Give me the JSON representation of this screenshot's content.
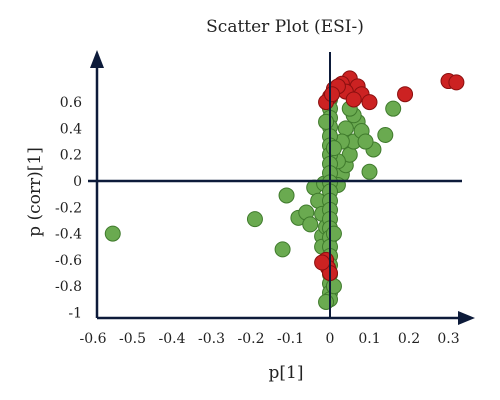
{
  "chart_data": {
    "type": "scatter",
    "title": "Scatter Plot (ESI-)",
    "xlabel": "p[1]",
    "ylabel": "p (corr)[1]",
    "xlim": [
      -0.6,
      0.35
    ],
    "ylim": [
      -1,
      0.8
    ],
    "x_ticks": [
      "-0.6",
      "-0.5",
      "-0.4",
      "-0.3",
      "-0.2",
      "-0.1",
      "0",
      "0.1",
      "0.2",
      "0.3"
    ],
    "y_ticks": [
      "0.6",
      "0.4",
      "0.2",
      "0",
      "-0.2",
      "-0.4",
      "-0.6",
      "-0.8",
      "-1"
    ],
    "colors": {
      "green_fill": "#6aaa50",
      "green_stroke": "#3f7a2c",
      "red_fill": "#cc2222",
      "red_stroke": "#8a0f0f",
      "axis": "#0d1b3a"
    },
    "series": [
      {
        "color": "red",
        "points": [
          [
            0.3,
            0.76
          ],
          [
            0.32,
            0.75
          ],
          [
            0.19,
            0.66
          ],
          [
            0.05,
            0.78
          ],
          [
            0.03,
            0.74
          ],
          [
            0.07,
            0.72
          ],
          [
            0.01,
            0.7
          ],
          [
            0.04,
            0.68
          ],
          [
            0.08,
            0.66
          ],
          [
            0.0,
            0.64
          ],
          [
            0.02,
            0.72
          ],
          [
            0.06,
            0.62
          ],
          [
            0.1,
            0.6
          ],
          [
            -0.01,
            0.6
          ],
          [
            0.005,
            0.66
          ],
          [
            -0.01,
            -0.6
          ],
          [
            -0.005,
            -0.66
          ],
          [
            0.0,
            -0.7
          ],
          [
            -0.02,
            -0.62
          ]
        ]
      },
      {
        "color": "green",
        "points": [
          [
            -0.55,
            -0.4
          ],
          [
            -0.19,
            -0.29
          ],
          [
            -0.12,
            -0.52
          ],
          [
            -0.11,
            -0.11
          ],
          [
            -0.08,
            -0.28
          ],
          [
            -0.06,
            -0.24
          ],
          [
            -0.05,
            -0.33
          ],
          [
            -0.04,
            -0.05
          ],
          [
            -0.03,
            -0.15
          ],
          [
            -0.02,
            -0.25
          ],
          [
            -0.02,
            -0.42
          ],
          [
            -0.02,
            -0.5
          ],
          [
            -0.015,
            -0.02
          ],
          [
            -0.01,
            -0.35
          ],
          [
            0.16,
            0.55
          ],
          [
            0.14,
            0.35
          ],
          [
            0.11,
            0.24
          ],
          [
            0.1,
            0.07
          ],
          [
            0.03,
            0.05
          ],
          [
            0.04,
            0.12
          ],
          [
            0.02,
            -0.03
          ],
          [
            0.05,
            0.2
          ],
          [
            0.06,
            0.3
          ],
          [
            0.07,
            0.45
          ],
          [
            0.08,
            0.38
          ],
          [
            0.09,
            0.3
          ],
          [
            0.06,
            0.5
          ],
          [
            0.04,
            0.4
          ],
          [
            0.03,
            0.3
          ],
          [
            0.02,
            0.15
          ],
          [
            0.05,
            0.55
          ],
          [
            0.0,
            0.62
          ],
          [
            0.0,
            0.55
          ],
          [
            0.0,
            0.48
          ],
          [
            0.0,
            0.41
          ],
          [
            0.0,
            0.34
          ],
          [
            0.0,
            0.27
          ],
          [
            0.0,
            0.2
          ],
          [
            0.0,
            0.13
          ],
          [
            0.0,
            0.06
          ],
          [
            0.0,
            -0.01
          ],
          [
            0.0,
            -0.08
          ],
          [
            0.0,
            -0.15
          ],
          [
            0.0,
            -0.22
          ],
          [
            0.0,
            -0.29
          ],
          [
            0.0,
            -0.36
          ],
          [
            0.0,
            -0.43
          ],
          [
            0.0,
            -0.5
          ],
          [
            0.0,
            -0.57
          ],
          [
            0.0,
            -0.64
          ],
          [
            0.0,
            -0.71
          ],
          [
            0.0,
            -0.78
          ],
          [
            0.0,
            -0.85
          ],
          [
            0.0,
            -0.9
          ],
          [
            -0.01,
            -0.92
          ],
          [
            0.01,
            -0.4
          ],
          [
            0.01,
            0.25
          ],
          [
            0.01,
            -0.8
          ],
          [
            -0.01,
            0.45
          ]
        ]
      }
    ]
  }
}
